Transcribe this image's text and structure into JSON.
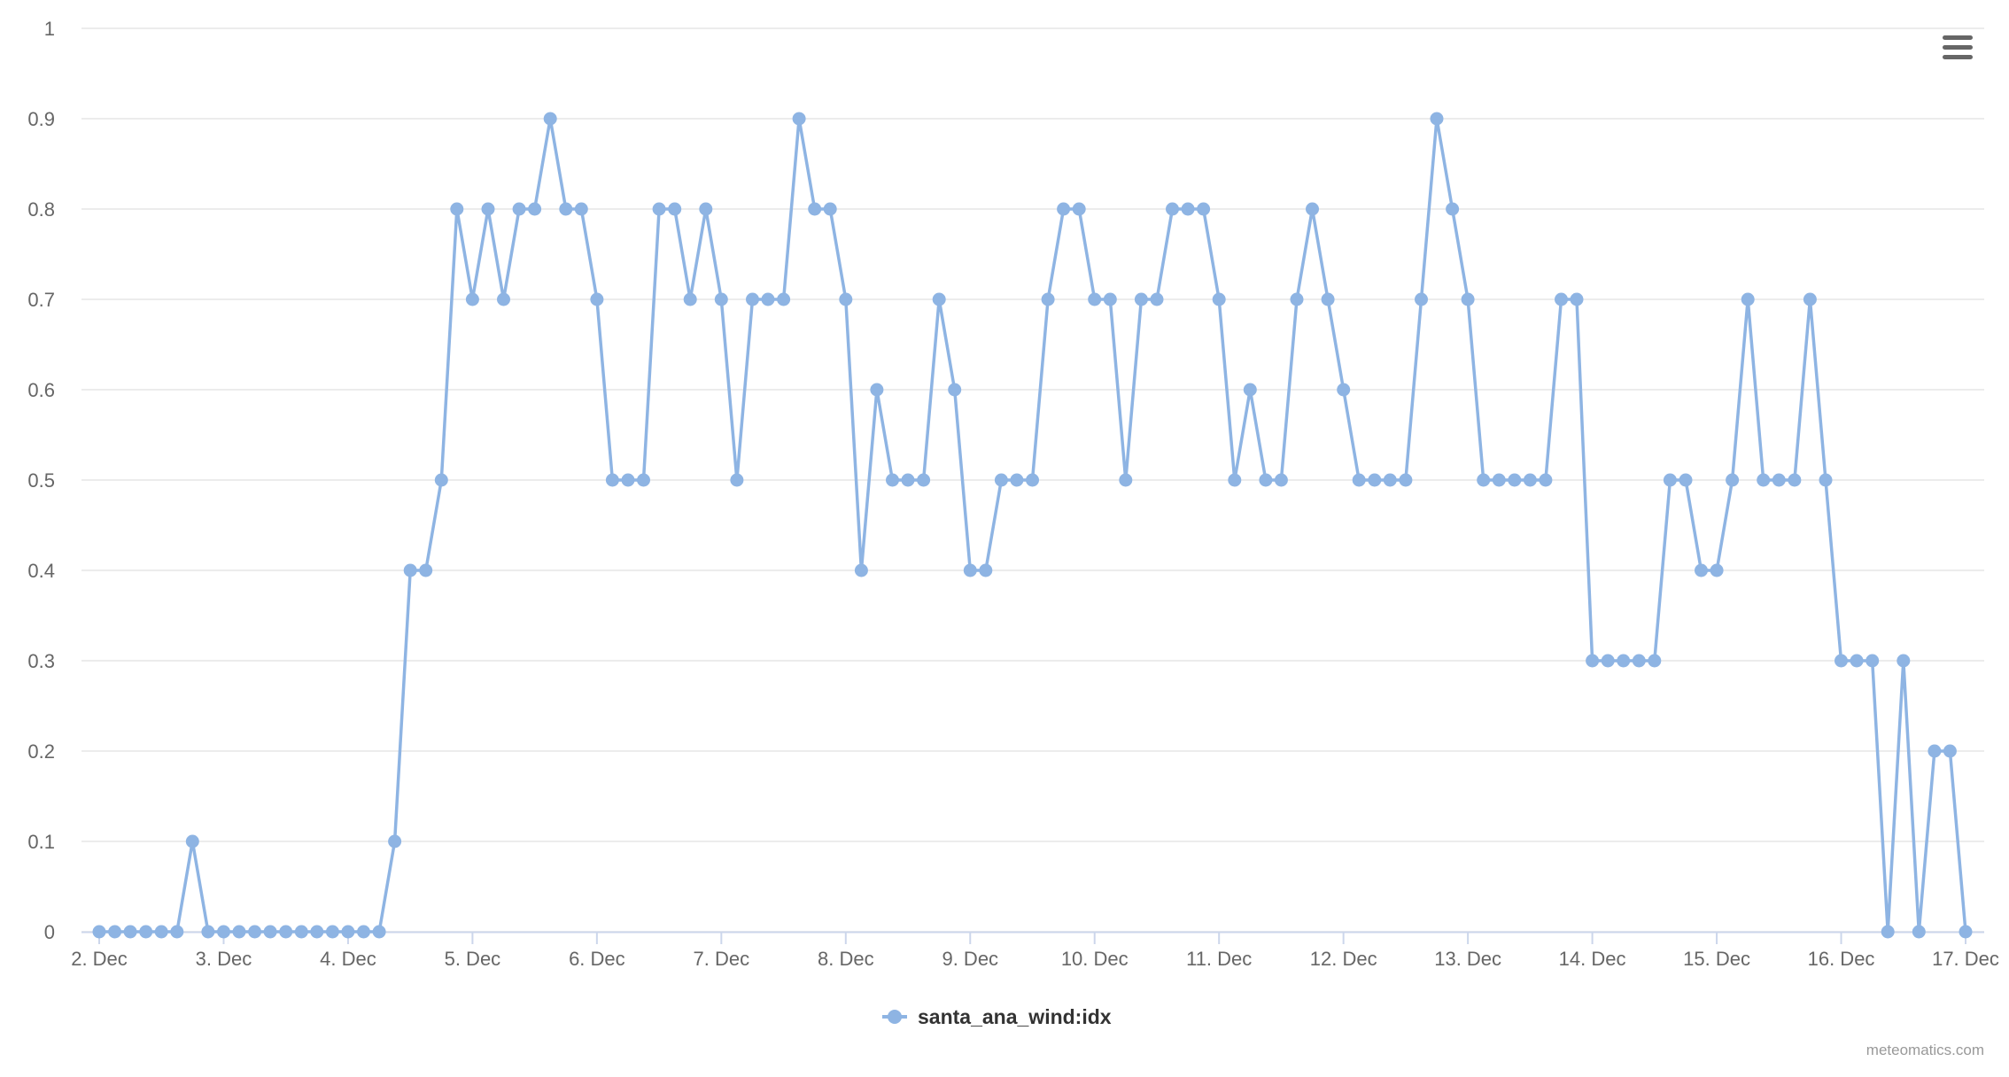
{
  "chart_data": {
    "type": "line",
    "title": "",
    "xlabel": "",
    "ylabel": "",
    "ylim": [
      0,
      1
    ],
    "y_ticks": [
      0,
      0.1,
      0.2,
      0.3,
      0.4,
      0.5,
      0.6,
      0.7,
      0.8,
      0.9,
      1
    ],
    "y_tick_labels": [
      "0",
      "0.1",
      "0.2",
      "0.3",
      "0.4",
      "0.5",
      "0.6",
      "0.7",
      "0.8",
      "0.9",
      "1"
    ],
    "x_start": "2. Dec 00:00",
    "x_step": "3 hours",
    "x_ticks": [
      "2. Dec",
      "3. Dec",
      "4. Dec",
      "5. Dec",
      "6. Dec",
      "7. Dec",
      "8. Dec",
      "9. Dec",
      "10. Dec",
      "11. Dec",
      "12. Dec",
      "13. Dec",
      "14. Dec",
      "15. Dec",
      "16. Dec",
      "17. Dec"
    ],
    "grid": true,
    "legend_position": "bottom-center",
    "series": [
      {
        "name": "santa_ana_wind:idx",
        "color": "#8eb4e3",
        "values": [
          0,
          0,
          0,
          0,
          0,
          0,
          0.1,
          0,
          0,
          0,
          0,
          0,
          0,
          0,
          0,
          0,
          0,
          0,
          0,
          0.1,
          0.4,
          0.4,
          0.5,
          0.8,
          0.7,
          0.8,
          0.7,
          0.8,
          0.8,
          0.9,
          0.8,
          0.8,
          0.7,
          0.5,
          0.5,
          0.5,
          0.8,
          0.8,
          0.7,
          0.8,
          0.7,
          0.5,
          0.7,
          0.7,
          0.7,
          0.9,
          0.8,
          0.8,
          0.7,
          0.4,
          0.6,
          0.5,
          0.5,
          0.5,
          0.7,
          0.6,
          0.4,
          0.4,
          0.5,
          0.5,
          0.5,
          0.7,
          0.8,
          0.8,
          0.7,
          0.7,
          0.5,
          0.7,
          0.7,
          0.8,
          0.8,
          0.8,
          0.7,
          0.5,
          0.6,
          0.5,
          0.5,
          0.7,
          0.8,
          0.7,
          0.6,
          0.5,
          0.5,
          0.5,
          0.5,
          0.7,
          0.9,
          0.8,
          0.7,
          0.5,
          0.5,
          0.5,
          0.5,
          0.5,
          0.7,
          0.7,
          0.3,
          0.3,
          0.3,
          0.3,
          0.3,
          0.5,
          0.5,
          0.4,
          0.4,
          0.5,
          0.7,
          0.5,
          0.5,
          0.5,
          0.7,
          0.5,
          0.3,
          0.3,
          0.3,
          0,
          0.3,
          0,
          0.2,
          0.2,
          0
        ]
      }
    ]
  },
  "credits": "meteomatics.com",
  "menu_icon": "hamburger-menu-icon",
  "colors": {
    "series": "#8eb4e3",
    "grid": "#e6e6e6",
    "axis": "#ccd6eb",
    "label": "#666666",
    "legend_text": "#333333",
    "menu": "#666666",
    "credits": "#999999"
  }
}
